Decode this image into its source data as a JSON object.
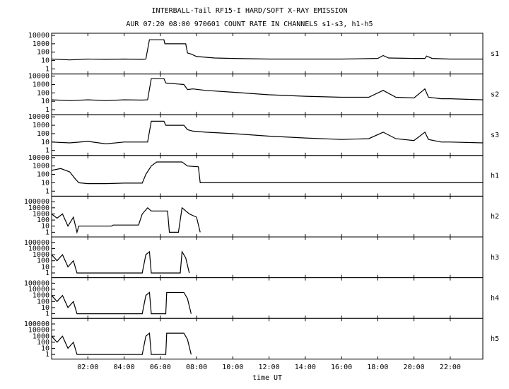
{
  "title": "INTERBALL-Tail RF15-I HARD/SOFT X-RAY EMISSION",
  "subtitle": "AUR 07:20 08:00 970601  COUNT RATE IN CHANNELS s1-s3, h1-h5",
  "x_axis": {
    "label": "time UT",
    "xlim": [
      0,
      23.8
    ],
    "xticks": [
      {
        "value": 2,
        "label": "02:00"
      },
      {
        "value": 4,
        "label": "04:00"
      },
      {
        "value": 6,
        "label": "06:00"
      },
      {
        "value": 8,
        "label": "08:00"
      },
      {
        "value": 10,
        "label": "10:00"
      },
      {
        "value": 12,
        "label": "12:00"
      },
      {
        "value": 14,
        "label": "14:00"
      },
      {
        "value": 16,
        "label": "16:00"
      },
      {
        "value": 18,
        "label": "18:00"
      },
      {
        "value": 20,
        "label": "20:00"
      },
      {
        "value": 22,
        "label": "22:00"
      }
    ]
  },
  "chart_data": [
    {
      "type": "line",
      "label": "s1",
      "log_y": true,
      "color": "#000000",
      "ylim": [
        0.25,
        18000
      ],
      "yticks": [
        1,
        10,
        100,
        1000,
        10000
      ],
      "x": [
        0,
        1,
        2,
        3,
        4,
        5,
        5.2,
        5.4,
        6.2,
        6.25,
        7.4,
        7.5,
        7.7,
        8,
        9,
        10,
        12,
        14,
        16,
        18,
        18.3,
        18.6,
        20,
        20.6,
        20.7,
        21,
        22,
        23.8
      ],
      "values": [
        15,
        12,
        15,
        14,
        15,
        14,
        15,
        3000,
        3000,
        1000,
        1000,
        80,
        60,
        30,
        20,
        18,
        15,
        15,
        15,
        18,
        40,
        20,
        18,
        18,
        35,
        18,
        15,
        15
      ]
    },
    {
      "type": "line",
      "label": "s2",
      "log_y": true,
      "color": "#000000",
      "ylim": [
        0.25,
        18000
      ],
      "yticks": [
        1,
        10,
        100,
        1000,
        10000
      ],
      "x": [
        0,
        1,
        2,
        3,
        4,
        5,
        5.3,
        5.5,
        6.2,
        6.3,
        7.3,
        7.5,
        7.8,
        8.5,
        10,
        12,
        14,
        16,
        17.5,
        18.3,
        19,
        20,
        20.6,
        20.8,
        21.5,
        22,
        23.8
      ],
      "values": [
        15,
        12,
        15,
        12,
        15,
        14,
        15,
        5000,
        5000,
        1500,
        1000,
        250,
        300,
        200,
        120,
        60,
        40,
        30,
        30,
        200,
        30,
        25,
        300,
        30,
        20,
        20,
        15
      ]
    },
    {
      "type": "line",
      "label": "s3",
      "log_y": true,
      "color": "#000000",
      "ylim": [
        0.25,
        18000
      ],
      "yticks": [
        1,
        10,
        100,
        1000,
        10000
      ],
      "x": [
        0,
        1,
        2,
        3,
        4,
        5,
        5.3,
        5.5,
        6.2,
        6.3,
        7.3,
        7.5,
        7.8,
        8.5,
        10,
        12,
        14,
        16,
        17.5,
        18.3,
        19,
        20,
        20.6,
        20.8,
        21.5,
        22,
        23.8
      ],
      "values": [
        10,
        8,
        12,
        6,
        10,
        10,
        10,
        3000,
        3000,
        1000,
        1000,
        300,
        200,
        150,
        100,
        50,
        30,
        20,
        25,
        150,
        25,
        15,
        150,
        20,
        10,
        10,
        8
      ]
    },
    {
      "type": "line",
      "label": "h1",
      "log_y": true,
      "color": "#000000",
      "ylim": [
        0.25,
        18000
      ],
      "yticks": [
        1,
        10,
        100,
        1000,
        10000
      ],
      "x": [
        0,
        0.5,
        1,
        1.3,
        1.5,
        2,
        3,
        4,
        5,
        5.2,
        5.5,
        5.8,
        7.2,
        7.5,
        8.1,
        8.2,
        9,
        12,
        16,
        20,
        23.8
      ],
      "values": [
        300,
        500,
        200,
        30,
        10,
        8,
        8,
        9,
        9,
        100,
        1000,
        3000,
        3000,
        1000,
        800,
        10,
        10,
        10,
        10,
        10,
        10
      ]
    },
    {
      "type": "line",
      "label": "h2",
      "log_y": true,
      "color": "#000000",
      "ylim": [
        0.17,
        800000
      ],
      "yticks": [
        1,
        10,
        100,
        1000,
        10000,
        100000
      ],
      "x": [
        0,
        0.3,
        0.6,
        0.9,
        1.2,
        1.4,
        1.5,
        3.3,
        3.4,
        4.8,
        5.0,
        5.3,
        5.5,
        6.4,
        6.5,
        7.0,
        7.2,
        7.6,
        8.0,
        8.2
      ],
      "values": [
        1000,
        200,
        1000,
        10,
        300,
        1,
        10,
        10,
        15,
        15,
        1000,
        10000,
        3000,
        3000,
        1,
        1,
        10000,
        1000,
        300,
        1
      ]
    },
    {
      "type": "line",
      "label": "h3",
      "log_y": true,
      "color": "#000000",
      "ylim": [
        0.17,
        800000
      ],
      "yticks": [
        1,
        10,
        100,
        1000,
        10000,
        100000
      ],
      "x": [
        0,
        0.3,
        0.6,
        0.9,
        1.2,
        1.4,
        5.0,
        5.2,
        5.4,
        5.5,
        7.1,
        7.2,
        7.4,
        7.6
      ],
      "values": [
        1000,
        100,
        1000,
        10,
        100,
        1,
        1,
        1000,
        3000,
        1,
        1,
        3000,
        300,
        1
      ]
    },
    {
      "type": "line",
      "label": "h4",
      "log_y": true,
      "color": "#000000",
      "ylim": [
        0.17,
        800000
      ],
      "yticks": [
        1,
        10,
        100,
        1000,
        10000,
        100000
      ],
      "x": [
        0,
        0.3,
        0.6,
        0.9,
        1.2,
        1.4,
        5.0,
        5.2,
        5.4,
        5.5,
        6.3,
        6.35,
        7.3,
        7.5,
        7.7
      ],
      "values": [
        1000,
        100,
        1000,
        10,
        100,
        1,
        1,
        1000,
        3000,
        1,
        1,
        3000,
        3000,
        300,
        1
      ]
    },
    {
      "type": "line",
      "label": "h5",
      "log_y": true,
      "color": "#000000",
      "ylim": [
        0.17,
        800000
      ],
      "yticks": [
        1,
        10,
        100,
        1000,
        10000,
        100000
      ],
      "x": [
        0,
        0.3,
        0.6,
        0.9,
        1.2,
        1.4,
        5.0,
        5.2,
        5.4,
        5.5,
        6.3,
        6.35,
        7.3,
        7.5,
        7.7
      ],
      "values": [
        1000,
        100,
        1000,
        10,
        100,
        1,
        1,
        1000,
        3000,
        1,
        1,
        3000,
        3000,
        300,
        1
      ]
    }
  ]
}
